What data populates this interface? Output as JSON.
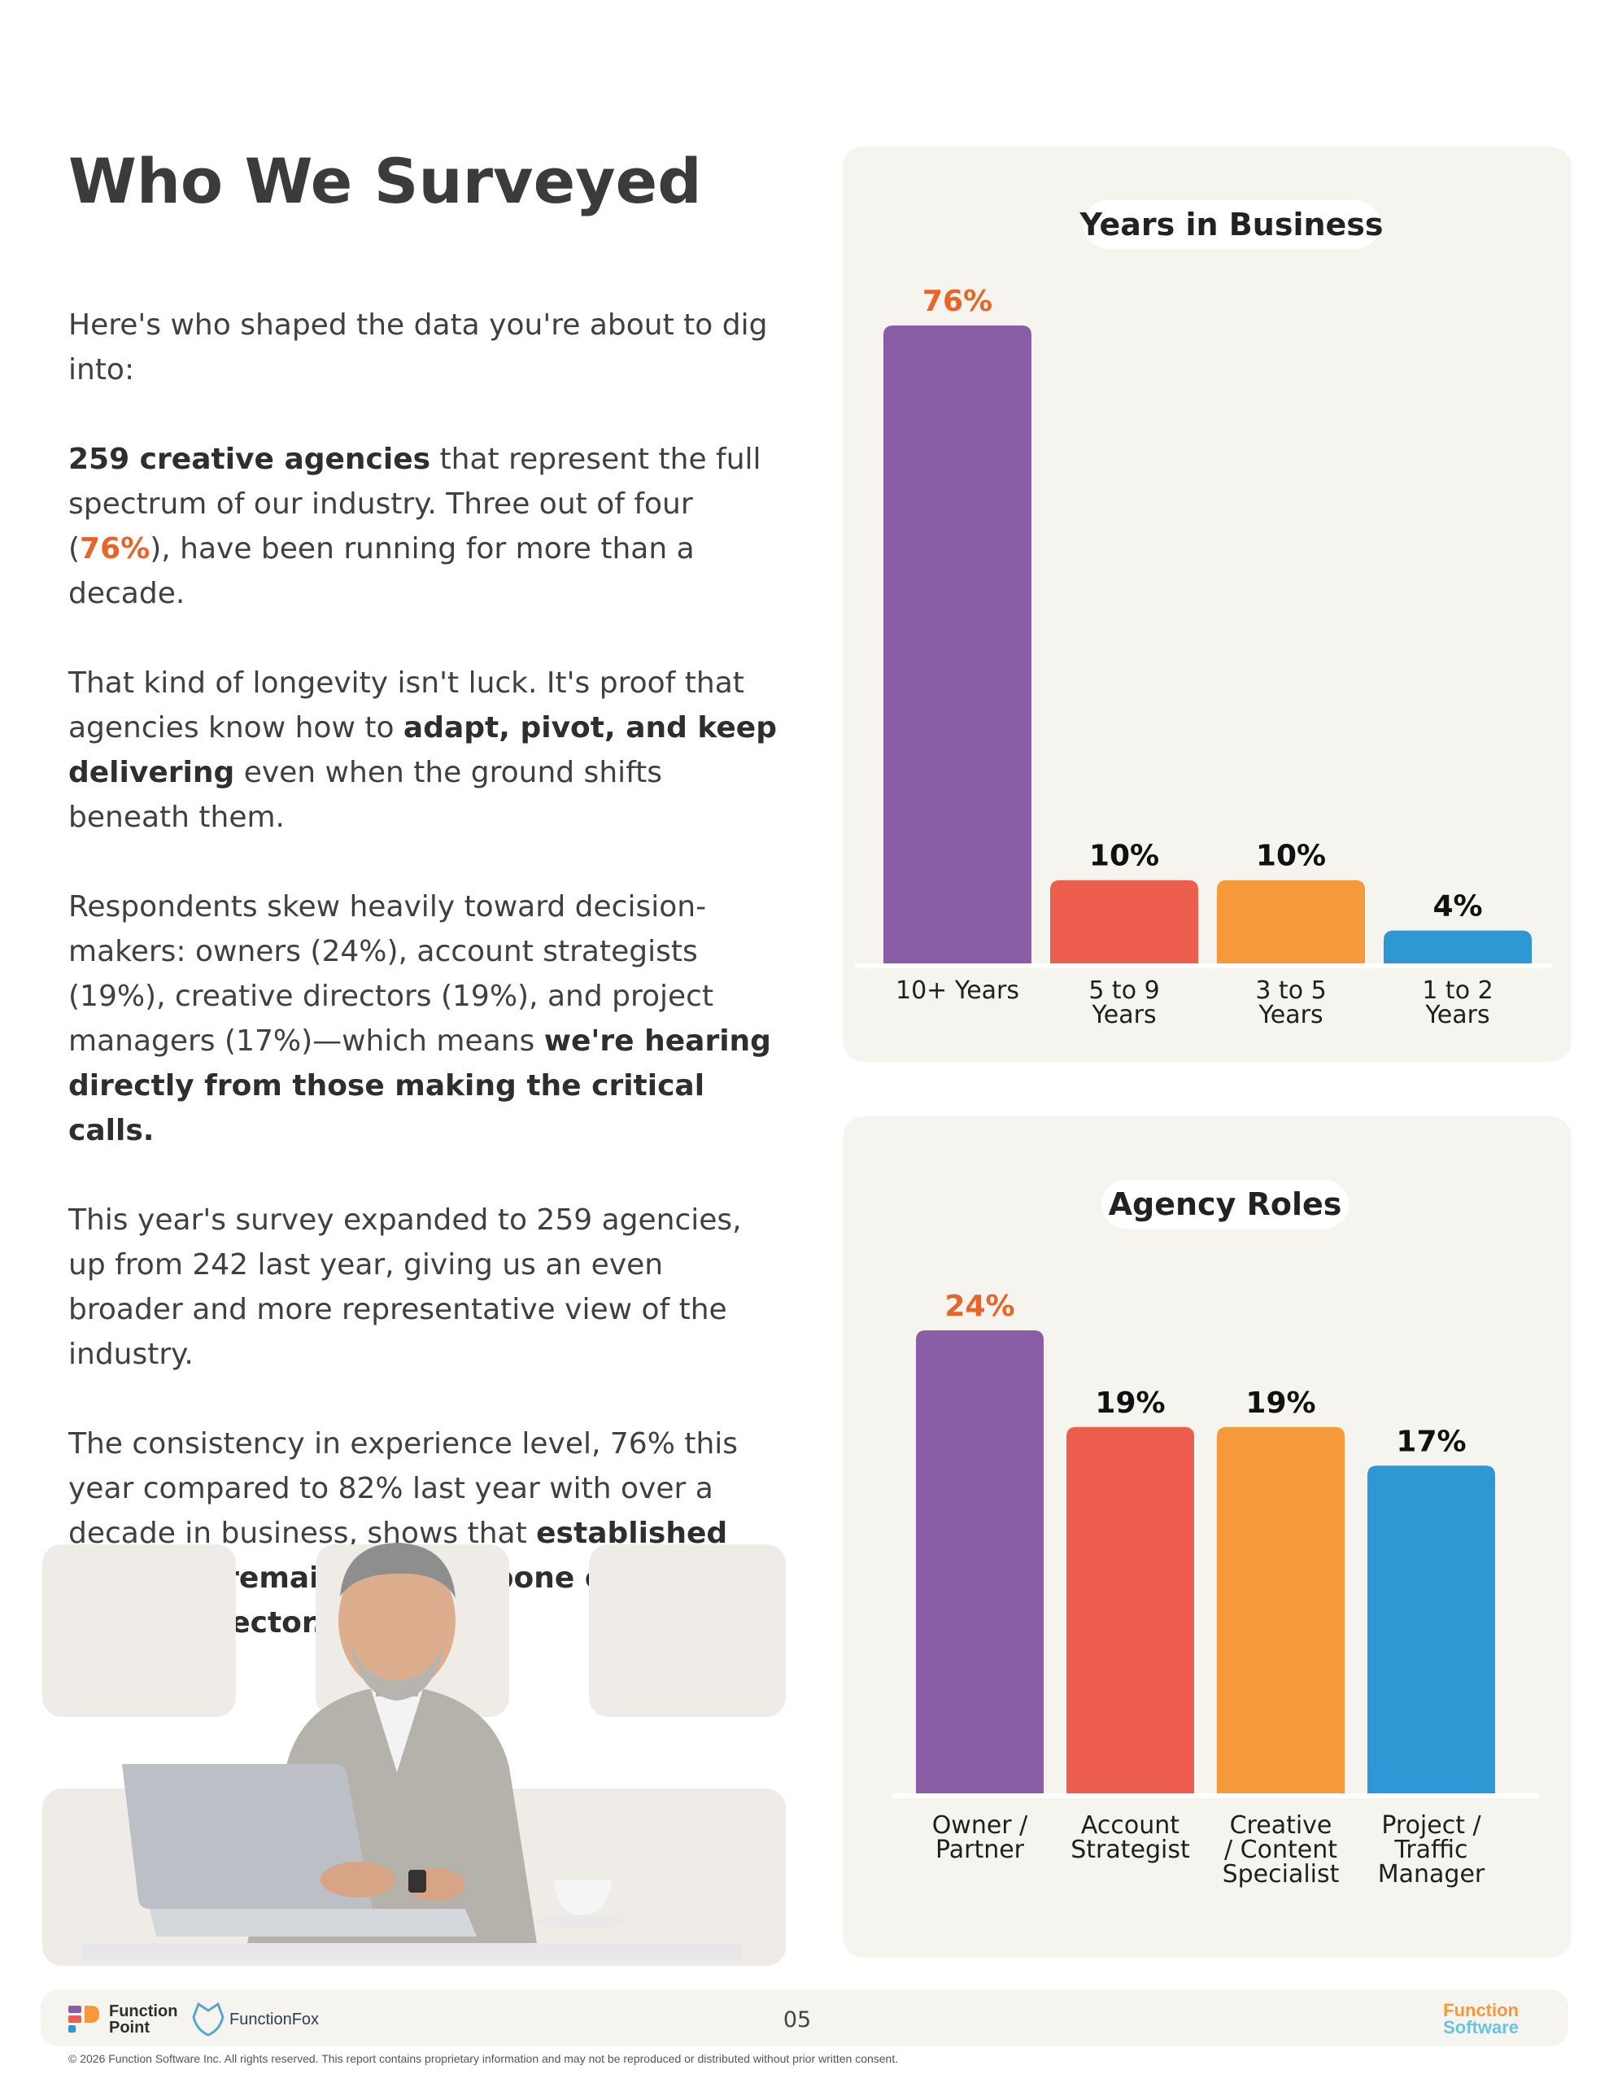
{
  "page": {
    "title": "Who We Surveyed",
    "paragraphs": [
      [
        {
          "t": "Here's who shaped the data you're about to dig into:"
        }
      ],
      [
        {
          "t": "259 creative agencies",
          "b": true
        },
        {
          "t": " that represent the full spectrum of our industry. Three out of four ("
        },
        {
          "t": "76%",
          "hl": true
        },
        {
          "t": "), have been running for more than a decade."
        }
      ],
      [
        {
          "t": "That kind of longevity isn't luck. It's proof that agencies know how to "
        },
        {
          "t": "adapt, pivot, and keep delivering",
          "b": true
        },
        {
          "t": " even when the ground shifts beneath them."
        }
      ],
      [
        {
          "t": "Respondents skew heavily toward decision-makers: owners (24%), account strategists (19%), creative directors (19%), and project managers (17%)—which means "
        },
        {
          "t": "we're hearing directly from those making the critical calls.",
          "b": true
        }
      ],
      [
        {
          "t": "This year's survey expanded to 259 agencies, up from 242 last year, giving us an even broader and more representative view of the industry."
        }
      ],
      [
        {
          "t": "The consistency in experience level, 76% this year compared to 82% last year with over a decade in business, shows that "
        },
        {
          "t": "established agencies remain the backbone of the creative sector.",
          "b": true
        }
      ]
    ]
  },
  "colors": {
    "purple": "#8a5ea7",
    "red": "#ee5e4e",
    "orange": "#f5993a",
    "blue": "#2e98d5",
    "highlight": "#e8652a",
    "card_bg": "#f6f4ef"
  },
  "chart_data": [
    {
      "type": "bar",
      "title": "Years in Business",
      "categories": [
        "10+ Years",
        "5 to 9 Years",
        "3 to 5 Years",
        "1 to 2 Years"
      ],
      "values": [
        76,
        10,
        10,
        4
      ],
      "labels": [
        "76%",
        "10%",
        "10%",
        "4%"
      ],
      "unit": "%",
      "ylim": [
        0,
        76
      ],
      "grid": false,
      "highlight_first": true
    },
    {
      "type": "bar",
      "title": "Agency Roles",
      "categories": [
        "Owner / Partner",
        "Account Strategist",
        "Creative / Content Specialist",
        "Project / Traffic Manager"
      ],
      "values": [
        24,
        19,
        19,
        17
      ],
      "labels": [
        "24%",
        "19%",
        "19%",
        "17%"
      ],
      "unit": "%",
      "ylim": [
        0,
        24
      ],
      "grid": false,
      "highlight_first": true
    }
  ],
  "footer": {
    "logo1_line1": "Function",
    "logo1_line2": "Point",
    "logo2": "FunctionFox",
    "page_number": "05",
    "logo3_line1": "Function",
    "logo3_line2": "Software",
    "copyright": "© 2026 Function Software Inc. All rights reserved. This report contains proprietary information and may not be reproduced or distributed without prior written consent."
  }
}
